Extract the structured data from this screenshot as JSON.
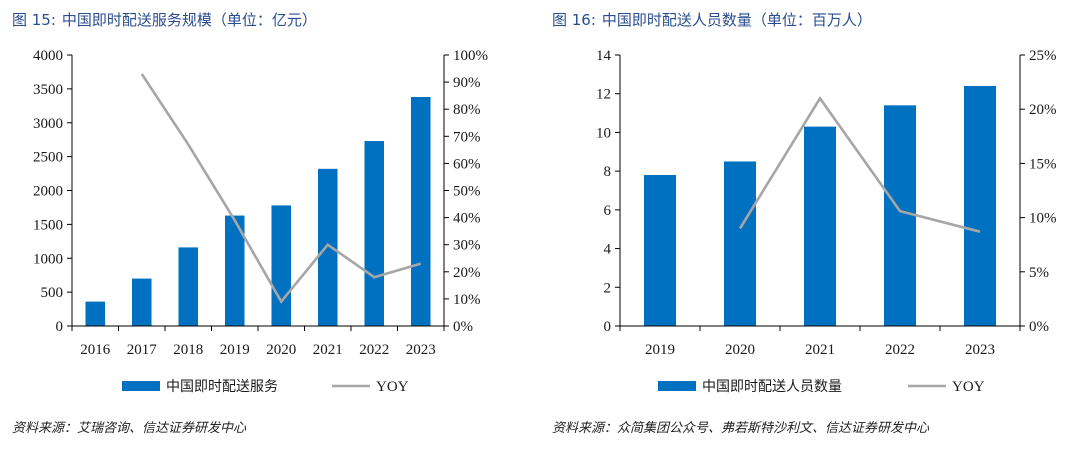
{
  "colors": {
    "bar": "#0070c0",
    "line": "#a6a6a6",
    "axis": "#000000",
    "title": "#2a4d8f"
  },
  "left": {
    "figure_label": "图 15:",
    "title": "中国即时配送服务规模（单位：亿元）",
    "source": "资料来源：艾瑞咨询、信达证券研发中心"
  },
  "right": {
    "figure_label": "图 16:",
    "title": "中国即时配送人员数量（单位：百万人）",
    "source": "资料来源：众简集团公众号、弗若斯特沙利文、信达证券研发中心"
  },
  "chart_data": [
    {
      "type": "bar",
      "categories": [
        "2016",
        "2017",
        "2018",
        "2019",
        "2020",
        "2021",
        "2022",
        "2023"
      ],
      "series": [
        {
          "name": "中国即时配送服务",
          "type": "bar",
          "axis": "left",
          "values": [
            360,
            700,
            1160,
            1630,
            1780,
            2320,
            2730,
            3380
          ]
        },
        {
          "name": "YOY",
          "type": "line",
          "axis": "right",
          "values": [
            null,
            0.93,
            0.67,
            0.39,
            0.09,
            0.3,
            0.18,
            0.23
          ]
        }
      ],
      "y_left": {
        "min": 0,
        "max": 4000,
        "step": 500,
        "ticks": [
          "0",
          "500",
          "1000",
          "1500",
          "2000",
          "2500",
          "3000",
          "3500",
          "4000"
        ]
      },
      "y_right": {
        "min": 0,
        "max": 1.0,
        "step": 0.1,
        "ticks": [
          "0%",
          "10%",
          "20%",
          "30%",
          "40%",
          "50%",
          "60%",
          "70%",
          "80%",
          "90%",
          "100%"
        ]
      },
      "grid": false,
      "legend_position": "bottom"
    },
    {
      "type": "bar",
      "categories": [
        "2019",
        "2020",
        "2021",
        "2022",
        "2023"
      ],
      "series": [
        {
          "name": "中国即时配送人员数量",
          "type": "bar",
          "axis": "left",
          "values": [
            7.8,
            8.5,
            10.3,
            11.4,
            12.4
          ]
        },
        {
          "name": "YOY",
          "type": "line",
          "axis": "right",
          "values": [
            null,
            0.09,
            0.21,
            0.106,
            0.087
          ]
        }
      ],
      "y_left": {
        "min": 0,
        "max": 14,
        "step": 2,
        "ticks": [
          "0",
          "2",
          "4",
          "6",
          "8",
          "10",
          "12",
          "14"
        ]
      },
      "y_right": {
        "min": 0,
        "max": 0.25,
        "step": 0.05,
        "ticks": [
          "0%",
          "5%",
          "10%",
          "15%",
          "20%",
          "25%"
        ]
      },
      "grid": false,
      "legend_position": "bottom"
    }
  ]
}
